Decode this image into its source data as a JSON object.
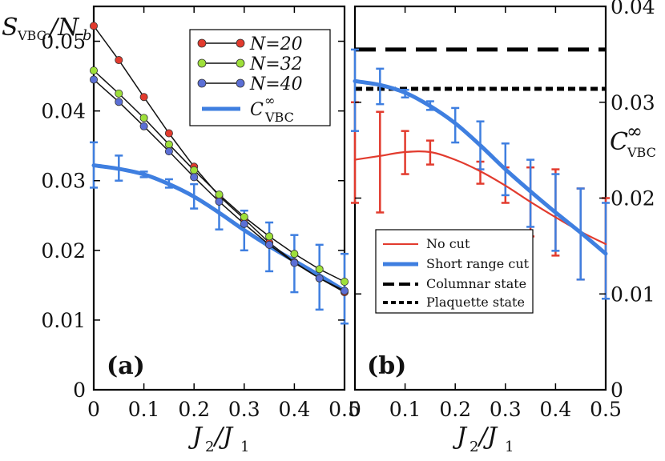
{
  "chart_data": [
    {
      "panel": "a",
      "type": "line",
      "panel_label": "(a)",
      "xlabel": "J2/J1",
      "ylabel": "SVBC/Nb",
      "xlim": [
        0,
        0.5
      ],
      "ylim": [
        0,
        0.055
      ],
      "x_ticks": [
        "0",
        "0.1",
        "0.2",
        "0.3",
        "0.4",
        "0.5"
      ],
      "y_ticks": [
        "0",
        "0.01",
        "0.02",
        "0.03",
        "0.04",
        "0.05"
      ],
      "grid": false,
      "legend_position": "top-right",
      "series": [
        {
          "name": "N=20",
          "color": "#e23b2e",
          "x": [
            0,
            0.05,
            0.1,
            0.15,
            0.2,
            0.25,
            0.3,
            0.35,
            0.4,
            0.45,
            0.5
          ],
          "y": [
            0.0522,
            0.0473,
            0.042,
            0.0368,
            0.032,
            0.0278,
            0.0245,
            0.0211,
            0.0183,
            0.016,
            0.014
          ]
        },
        {
          "name": "N=32",
          "color": "#9ee03a",
          "x": [
            0,
            0.05,
            0.1,
            0.15,
            0.2,
            0.25,
            0.3,
            0.35,
            0.4,
            0.45,
            0.5
          ],
          "y": [
            0.0458,
            0.0425,
            0.039,
            0.0352,
            0.0315,
            0.028,
            0.0248,
            0.022,
            0.0195,
            0.0173,
            0.0155
          ]
        },
        {
          "name": "N=40",
          "color": "#5b6fd6",
          "x": [
            0,
            0.05,
            0.1,
            0.15,
            0.2,
            0.25,
            0.3,
            0.35,
            0.4,
            0.45,
            0.5
          ],
          "y": [
            0.0445,
            0.0413,
            0.0378,
            0.0342,
            0.0305,
            0.027,
            0.0238,
            0.0208,
            0.0182,
            0.016,
            0.0142
          ]
        },
        {
          "name": "C∞VBC",
          "color": "#3f7fe0",
          "curve_x": [
            0,
            0.05,
            0.1,
            0.15,
            0.2,
            0.25,
            0.3,
            0.35,
            0.4,
            0.45,
            0.5
          ],
          "curve_y": [
            0.0322,
            0.0317,
            0.0309,
            0.0295,
            0.0277,
            0.0254,
            0.0229,
            0.0206,
            0.0185,
            0.0164,
            0.0142
          ],
          "errorbars": [
            {
              "x": 0,
              "lo": 0.029,
              "hi": 0.0355
            },
            {
              "x": 0.05,
              "lo": 0.03,
              "hi": 0.0336
            },
            {
              "x": 0.1,
              "lo": 0.0305,
              "hi": 0.0313
            },
            {
              "x": 0.15,
              "lo": 0.029,
              "hi": 0.0302
            },
            {
              "x": 0.2,
              "lo": 0.026,
              "hi": 0.0295
            },
            {
              "x": 0.25,
              "lo": 0.023,
              "hi": 0.028
            },
            {
              "x": 0.3,
              "lo": 0.02,
              "hi": 0.0257
            },
            {
              "x": 0.35,
              "lo": 0.017,
              "hi": 0.024
            },
            {
              "x": 0.4,
              "lo": 0.014,
              "hi": 0.0222
            },
            {
              "x": 0.45,
              "lo": 0.0115,
              "hi": 0.0208
            },
            {
              "x": 0.5,
              "lo": 0.0095,
              "hi": 0.0195
            }
          ]
        }
      ]
    },
    {
      "panel": "b",
      "type": "line",
      "panel_label": "(b)",
      "xlabel": "J2/J1",
      "ylabel": "C∞VBC",
      "xlim": [
        0,
        0.5
      ],
      "ylim": [
        0,
        0.04
      ],
      "x_ticks": [
        "0",
        "0.1",
        "0.2",
        "0.3",
        "0.4",
        "0.5"
      ],
      "y_ticks": [
        "0",
        "0.01",
        "0.02",
        "0.03",
        "0.04"
      ],
      "grid": false,
      "legend_position": "bottom-left",
      "series": [
        {
          "name": "No cut",
          "color": "#e23b2e",
          "curve_x": [
            0,
            0.05,
            0.1,
            0.15,
            0.2,
            0.25,
            0.3,
            0.35,
            0.4,
            0.45,
            0.5
          ],
          "curve_y": [
            0.024,
            0.0244,
            0.0248,
            0.0248,
            0.024,
            0.0228,
            0.0213,
            0.0196,
            0.018,
            0.0165,
            0.0152
          ],
          "errorbars": [
            {
              "x": 0,
              "lo": 0.0195,
              "hi": 0.03
            },
            {
              "x": 0.05,
              "lo": 0.0185,
              "hi": 0.029
            },
            {
              "x": 0.1,
              "lo": 0.0225,
              "hi": 0.027
            },
            {
              "x": 0.15,
              "lo": 0.0235,
              "hi": 0.026
            },
            {
              "x": 0.2,
              "lo": null,
              "hi": null
            },
            {
              "x": 0.25,
              "lo": 0.0215,
              "hi": 0.0238
            },
            {
              "x": 0.3,
              "lo": 0.0195,
              "hi": 0.0232
            },
            {
              "x": 0.35,
              "lo": 0.016,
              "hi": 0.0232
            },
            {
              "x": 0.4,
              "lo": 0.014,
              "hi": 0.023
            },
            {
              "x": 0.45,
              "lo": 0.0115,
              "hi": 0.021
            },
            {
              "x": 0.5,
              "lo": 0.0095,
              "hi": 0.02
            }
          ]
        },
        {
          "name": "Short range cut",
          "color": "#3f7fe0",
          "curve_x": [
            0,
            0.05,
            0.1,
            0.15,
            0.2,
            0.25,
            0.3,
            0.35,
            0.4,
            0.45,
            0.5
          ],
          "curve_y": [
            0.0322,
            0.0318,
            0.031,
            0.0296,
            0.0278,
            0.0255,
            0.023,
            0.0207,
            0.0185,
            0.0164,
            0.0142
          ],
          "errorbars": [
            {
              "x": 0,
              "lo": 0.027,
              "hi": 0.0355
            },
            {
              "x": 0.05,
              "lo": 0.0298,
              "hi": 0.0335
            },
            {
              "x": 0.1,
              "lo": 0.0305,
              "hi": 0.0313
            },
            {
              "x": 0.15,
              "lo": 0.0292,
              "hi": 0.0301
            },
            {
              "x": 0.2,
              "lo": 0.0258,
              "hi": 0.0294
            },
            {
              "x": 0.25,
              "lo": 0.023,
              "hi": 0.028
            },
            {
              "x": 0.3,
              "lo": 0.0203,
              "hi": 0.0257
            },
            {
              "x": 0.35,
              "lo": 0.017,
              "hi": 0.024
            },
            {
              "x": 0.4,
              "lo": 0.0145,
              "hi": 0.0225
            },
            {
              "x": 0.45,
              "lo": 0.0115,
              "hi": 0.021
            },
            {
              "x": 0.5,
              "lo": 0.0095,
              "hi": 0.0195
            }
          ]
        },
        {
          "name": "Columnar state",
          "color": "#000000",
          "constant_y": 0.0355,
          "line_style": "long-dash"
        },
        {
          "name": "Plaquette state",
          "color": "#000000",
          "constant_y": 0.0314,
          "line_style": "short-dash"
        }
      ]
    }
  ],
  "legend_a": {
    "n20": "N=20",
    "n32": "N=32",
    "n40": "N=40",
    "c_main": "C",
    "c_sup": "∞",
    "c_sub": "VBC"
  },
  "legend_b": {
    "no_cut": "No cut",
    "short_range": "Short range cut",
    "columnar": "Columnar state",
    "plaquette": "Plaquette state"
  },
  "axis_a": {
    "y_s": "S",
    "y_sub": "VBC",
    "y_slash": "/N",
    "y_b": "b",
    "x_j": "J",
    "x_2": "2",
    "x_slash": "/J",
    "x_1": "1"
  },
  "axis_b": {
    "x_j": "J",
    "x_2": "2",
    "x_slash": "/J",
    "x_1": "1",
    "y_c": "C",
    "y_sup": "∞",
    "y_sub": "VBC"
  }
}
